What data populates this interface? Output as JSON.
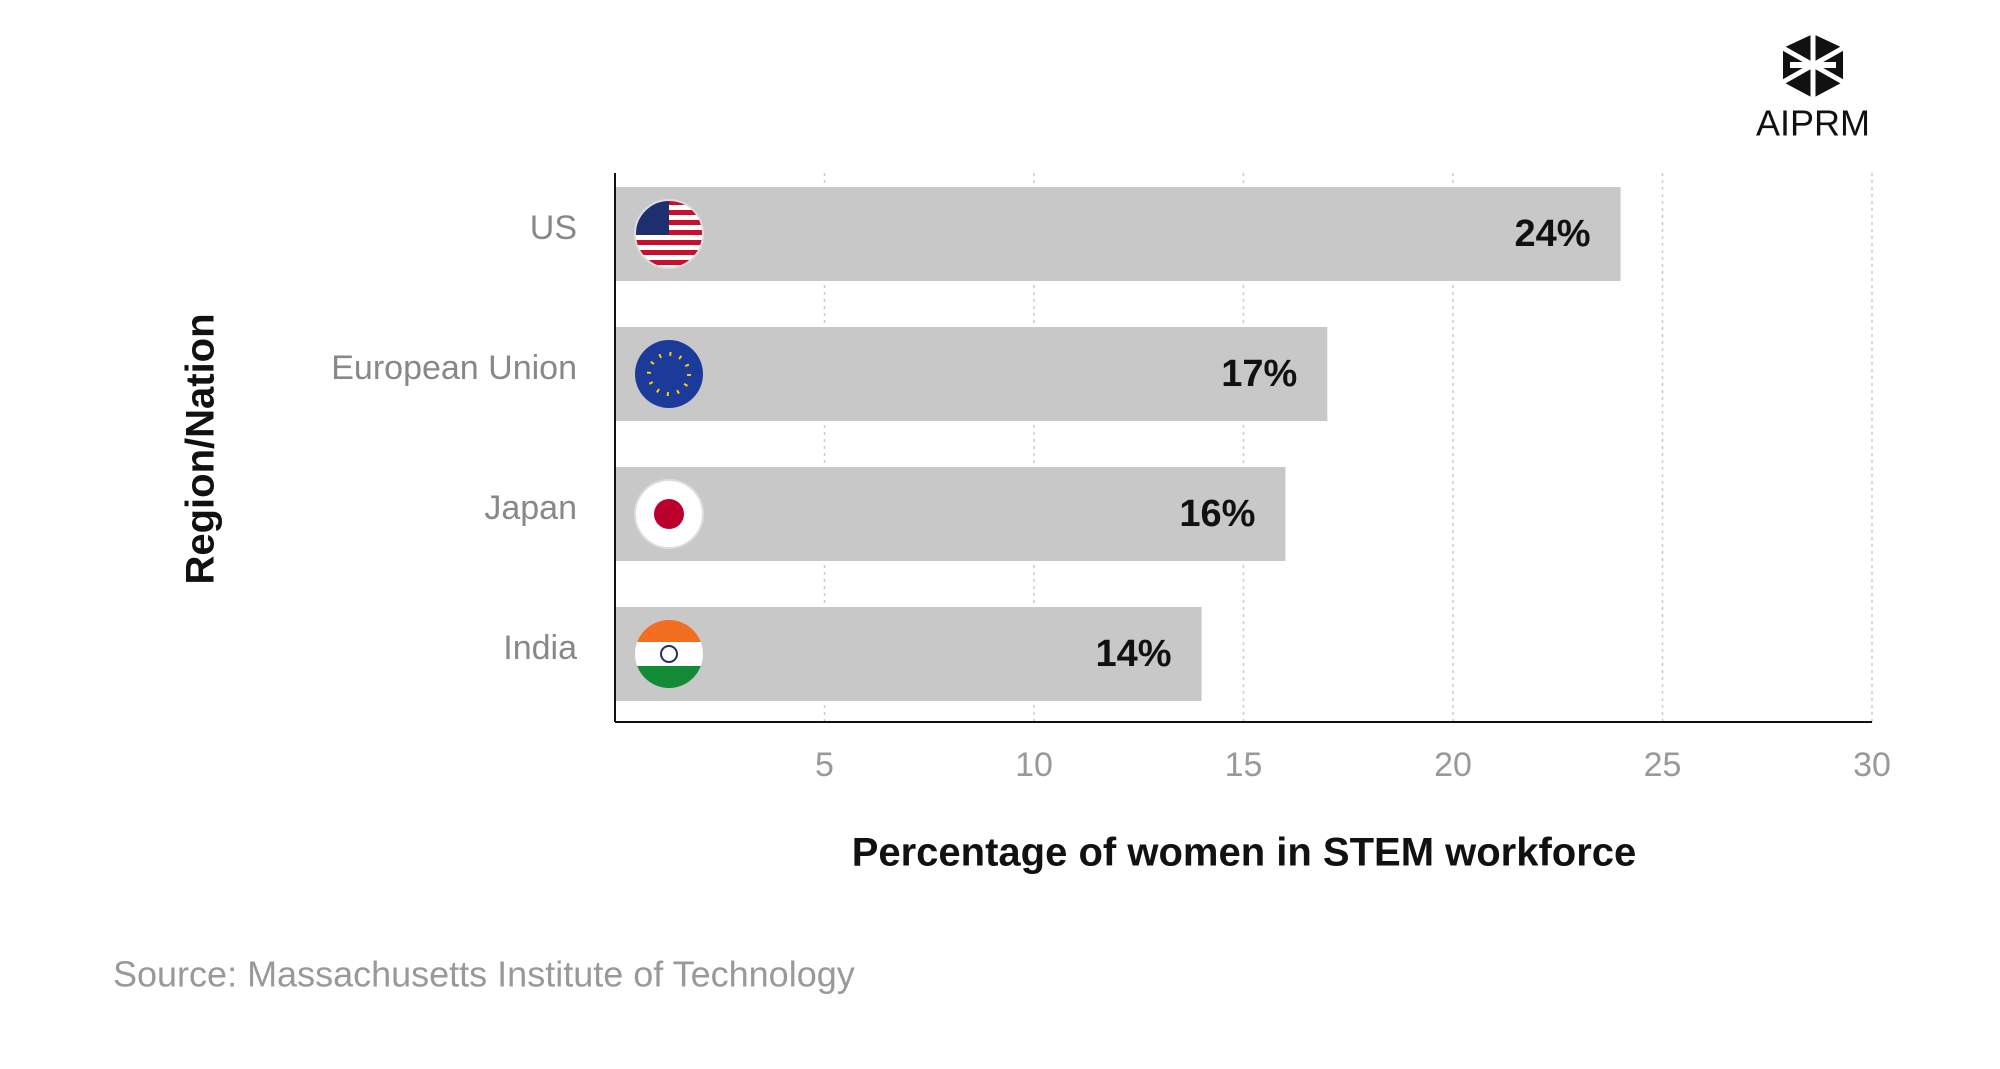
{
  "chart_data": {
    "type": "bar",
    "orientation": "horizontal",
    "categories": [
      "US",
      "European Union",
      "Japan",
      "India"
    ],
    "values": [
      24,
      17,
      16,
      14
    ],
    "value_labels": [
      "24%",
      "17%",
      "16%",
      "14%"
    ],
    "color": "#c8c8c8",
    "xlim": [
      0,
      30
    ],
    "xticks": [
      5,
      10,
      15,
      20,
      25,
      30
    ],
    "grid": true,
    "x_label": "Percentage of women in STEM workforce",
    "y_label": "Region/Nation",
    "source": "Source: Massachusetts Institute of Technology",
    "brand": "AIPRM"
  }
}
